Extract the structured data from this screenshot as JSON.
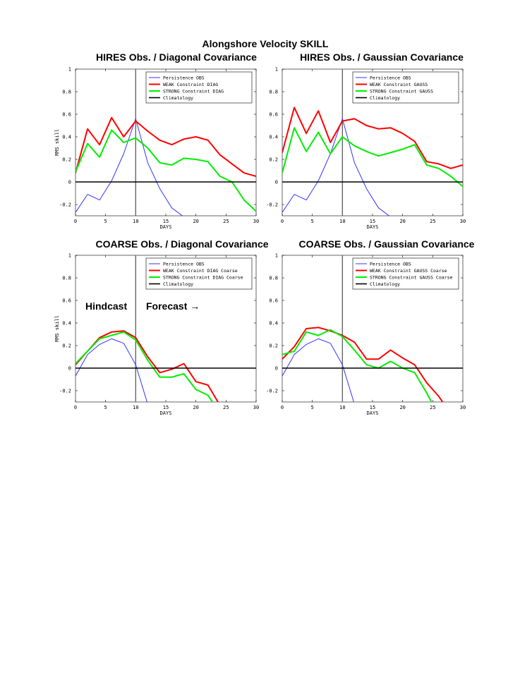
{
  "figure": {
    "title": "Alongshore Velocity SKILL",
    "annotations": {
      "hindcast": "Hindcast",
      "forecast": "Forecast →"
    }
  },
  "colors": {
    "persistence": "#3333ff",
    "weak": "#ff0000",
    "strong": "#00ee00",
    "climatology": "#000000",
    "forecast_line": "#666666"
  },
  "chart_data": [
    {
      "type": "line",
      "title": "HIRES Obs. / Diagonal Covariance",
      "xlabel": "DAYS",
      "ylabel": "RMS skill",
      "xlim": [
        0,
        30
      ],
      "ylim": [
        -0.3,
        1
      ],
      "xticks": [
        0,
        5,
        10,
        15,
        20,
        25,
        30
      ],
      "yticks": [
        -0.2,
        0,
        0.2,
        0.4,
        0.6,
        0.8,
        1
      ],
      "ytick_labels": [
        "-0.2",
        "0",
        "0.2",
        "0.4",
        "0.6",
        "0.8",
        "1"
      ],
      "vline_x": 10,
      "legend_position": "top-right",
      "series": [
        {
          "name": "Persistence OBS",
          "key": "persistence",
          "x": [
            0,
            2,
            4,
            6,
            8,
            10,
            12,
            14,
            16,
            18
          ],
          "y": [
            -0.27,
            -0.11,
            -0.16,
            0.01,
            0.25,
            0.56,
            0.17,
            -0.06,
            -0.23,
            -0.31
          ]
        },
        {
          "name": "WEAK Constraint DIAG",
          "key": "weak",
          "x": [
            0,
            2,
            4,
            6,
            8,
            10,
            12,
            14,
            16,
            18,
            20,
            22,
            24,
            26,
            28,
            30
          ],
          "y": [
            0.08,
            0.47,
            0.33,
            0.57,
            0.4,
            0.54,
            0.45,
            0.37,
            0.33,
            0.38,
            0.4,
            0.37,
            0.24,
            0.16,
            0.08,
            0.05
          ]
        },
        {
          "name": "STRONG Constraint DIAG",
          "key": "strong",
          "x": [
            0,
            2,
            4,
            6,
            8,
            10,
            12,
            14,
            16,
            18,
            20,
            22,
            24,
            26,
            28,
            30
          ],
          "y": [
            0.09,
            0.34,
            0.22,
            0.46,
            0.35,
            0.39,
            0.3,
            0.17,
            0.15,
            0.21,
            0.2,
            0.18,
            0.05,
            0.0,
            -0.16,
            -0.26
          ]
        },
        {
          "name": "Climatology",
          "key": "climatology",
          "x": [
            0,
            30
          ],
          "y": [
            0,
            0
          ]
        }
      ]
    },
    {
      "type": "line",
      "title": "HIRES Obs. / Gaussian Covariance",
      "xlabel": "DAYS",
      "ylabel": "",
      "xlim": [
        0,
        30
      ],
      "ylim": [
        -0.3,
        1
      ],
      "xticks": [
        0,
        5,
        10,
        15,
        20,
        25,
        30
      ],
      "yticks": [
        -0.2,
        0,
        0.2,
        0.4,
        0.6,
        0.8,
        1
      ],
      "ytick_labels": [
        "-0.2",
        "0",
        "0.2",
        "0.4",
        "0.6",
        "0.8",
        "1"
      ],
      "vline_x": 10,
      "legend_position": "top-right",
      "series": [
        {
          "name": "Persistence OBS",
          "key": "persistence",
          "x": [
            0,
            2,
            4,
            6,
            8,
            10,
            12,
            14,
            16,
            18
          ],
          "y": [
            -0.27,
            -0.11,
            -0.16,
            0.01,
            0.25,
            0.56,
            0.17,
            -0.06,
            -0.23,
            -0.31
          ]
        },
        {
          "name": "WEAK Constraint GAUSS",
          "key": "weak",
          "x": [
            0,
            2,
            4,
            6,
            8,
            10,
            12,
            14,
            16,
            18,
            20,
            22,
            24,
            26,
            28,
            30
          ],
          "y": [
            0.26,
            0.66,
            0.43,
            0.63,
            0.35,
            0.54,
            0.56,
            0.5,
            0.47,
            0.48,
            0.43,
            0.36,
            0.18,
            0.16,
            0.12,
            0.15
          ]
        },
        {
          "name": "STRONG Constraint GAUSS",
          "key": "strong",
          "x": [
            0,
            2,
            4,
            6,
            8,
            10,
            12,
            14,
            16,
            18,
            20,
            22,
            24,
            26,
            28,
            30
          ],
          "y": [
            0.08,
            0.48,
            0.27,
            0.44,
            0.25,
            0.4,
            0.32,
            0.27,
            0.23,
            0.26,
            0.29,
            0.33,
            0.15,
            0.12,
            0.05,
            -0.04
          ]
        },
        {
          "name": "Climatology",
          "key": "climatology",
          "x": [
            0,
            30
          ],
          "y": [
            0,
            0
          ]
        }
      ]
    },
    {
      "type": "line",
      "title": "COARSE Obs. / Diagonal Covariance",
      "xlabel": "DAYS",
      "ylabel": "RMS skill",
      "xlim": [
        0,
        30
      ],
      "ylim": [
        -0.3,
        1
      ],
      "xticks": [
        0,
        5,
        10,
        15,
        20,
        25,
        30
      ],
      "yticks": [
        -0.2,
        0,
        0.2,
        0.4,
        0.6,
        0.8,
        1
      ],
      "ytick_labels": [
        "-0.2",
        "0",
        "0.2",
        "0.4",
        "0.6",
        "0.8",
        "1"
      ],
      "vline_x": 10,
      "legend_position": "top-right",
      "series": [
        {
          "name": "Persistence OBS",
          "key": "persistence",
          "x": [
            0,
            2,
            4,
            6,
            8,
            10,
            12
          ],
          "y": [
            -0.07,
            0.12,
            0.21,
            0.26,
            0.22,
            0.03,
            -0.32
          ]
        },
        {
          "name": "WEAK Constraint DIAG Coarse",
          "key": "weak",
          "x": [
            0,
            2,
            4,
            6,
            8,
            10,
            12,
            14,
            16,
            18,
            20,
            22,
            24
          ],
          "y": [
            0.03,
            0.15,
            0.27,
            0.32,
            0.33,
            0.27,
            0.1,
            -0.04,
            -0.01,
            0.04,
            -0.12,
            -0.15,
            -0.33
          ]
        },
        {
          "name": "STRONG Constraint DIAG Coarse",
          "key": "strong",
          "x": [
            0,
            2,
            4,
            6,
            8,
            10,
            12,
            14,
            16,
            18,
            20,
            22,
            23
          ],
          "y": [
            0.04,
            0.15,
            0.26,
            0.29,
            0.32,
            0.25,
            0.07,
            -0.08,
            -0.08,
            -0.05,
            -0.19,
            -0.24,
            -0.32
          ]
        },
        {
          "name": "Climatology",
          "key": "climatology",
          "x": [
            0,
            30
          ],
          "y": [
            0,
            0
          ]
        }
      ]
    },
    {
      "type": "line",
      "title": "COARSE Obs. / Gaussian Covariance",
      "xlabel": "DAYS",
      "ylabel": "",
      "xlim": [
        0,
        30
      ],
      "ylim": [
        -0.3,
        1
      ],
      "xticks": [
        0,
        5,
        10,
        15,
        20,
        25,
        30
      ],
      "yticks": [
        -0.2,
        0,
        0.2,
        0.4,
        0.6,
        0.8,
        1
      ],
      "ytick_labels": [
        "-0.2",
        "0",
        "0.2",
        "0.4",
        "0.6",
        "0.8",
        "1"
      ],
      "vline_x": 10,
      "legend_position": "top-right",
      "series": [
        {
          "name": "Persistence OBS",
          "key": "persistence",
          "x": [
            0,
            2,
            4,
            6,
            8,
            10,
            12
          ],
          "y": [
            -0.07,
            0.12,
            0.21,
            0.26,
            0.22,
            0.03,
            -0.32
          ]
        },
        {
          "name": "WEAK Constraint GAUSS Coarse",
          "key": "weak",
          "x": [
            0,
            2,
            4,
            6,
            8,
            10,
            12,
            14,
            16,
            18,
            20,
            22,
            24,
            26,
            27
          ],
          "y": [
            0.08,
            0.19,
            0.35,
            0.36,
            0.33,
            0.29,
            0.23,
            0.08,
            0.08,
            0.16,
            0.09,
            0.03,
            -0.13,
            -0.25,
            -0.33
          ]
        },
        {
          "name": "STRONG Constraint GAUSS Coarse",
          "key": "strong",
          "x": [
            0,
            2,
            4,
            6,
            8,
            10,
            12,
            14,
            16,
            18,
            20,
            22,
            24,
            25
          ],
          "y": [
            0.12,
            0.15,
            0.32,
            0.29,
            0.34,
            0.28,
            0.16,
            0.03,
            0.0,
            0.06,
            0.0,
            -0.04,
            -0.22,
            -0.32
          ]
        },
        {
          "name": "Climatology",
          "key": "climatology",
          "x": [
            0,
            30
          ],
          "y": [
            0,
            0
          ]
        }
      ]
    }
  ]
}
